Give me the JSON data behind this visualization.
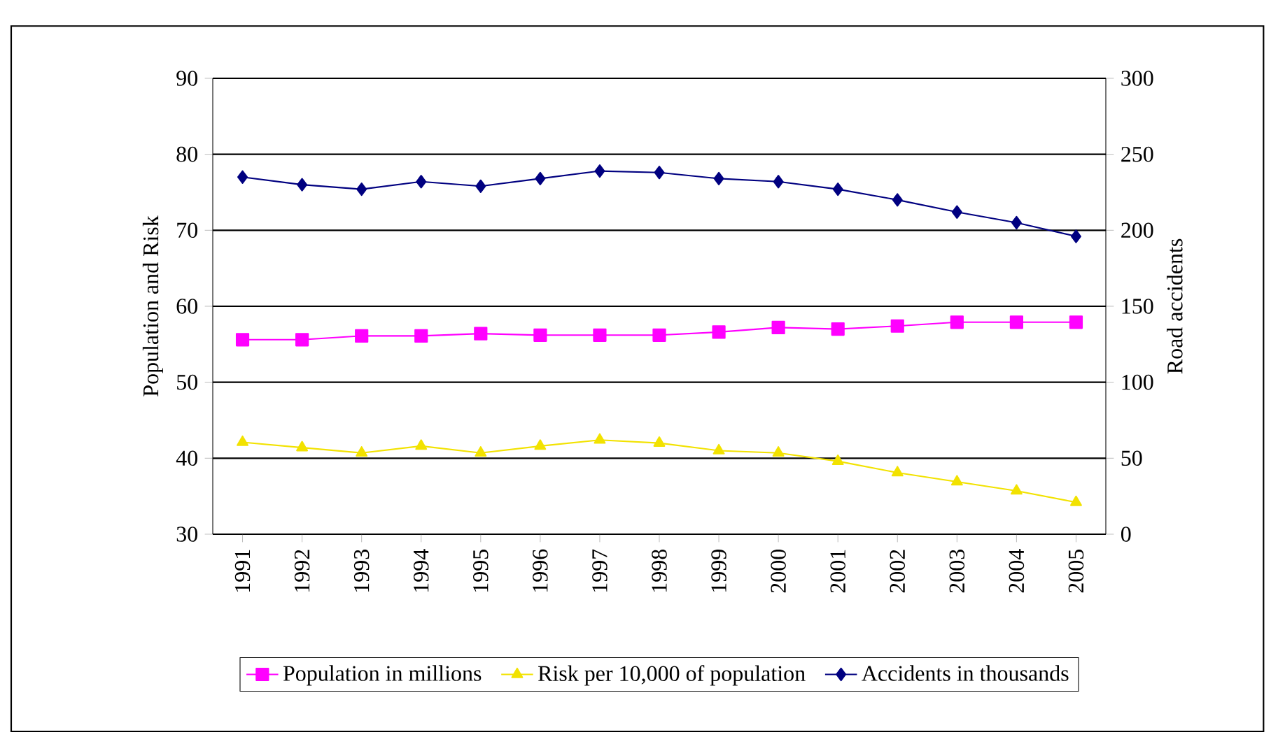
{
  "chart_data": {
    "type": "line",
    "ylabel": "Population and Risk",
    "y2label": "Road accidents",
    "categories": [
      "1991",
      "1992",
      "1993",
      "1994",
      "1995",
      "1996",
      "1997",
      "1998",
      "1999",
      "2000",
      "2001",
      "2002",
      "2003",
      "2004",
      "2005"
    ],
    "ylim": [
      30,
      90
    ],
    "yticks": [
      30,
      40,
      50,
      60,
      70,
      80,
      90
    ],
    "y2lim": [
      0,
      300
    ],
    "y2ticks": [
      0,
      50,
      100,
      150,
      200,
      250,
      300
    ],
    "grid": "y",
    "legend": "bottom",
    "line_style": "solid",
    "series": [
      {
        "name": "Population in millions",
        "color": "#ff00ff",
        "marker": "square",
        "values": [
          55.6,
          55.6,
          56.1,
          56.1,
          56.4,
          56.2,
          56.2,
          56.2,
          56.6,
          57.2,
          57.0,
          57.4,
          57.9,
          57.9,
          57.9
        ]
      },
      {
        "name": "Risk per 10,000 of population",
        "color": "#f2e200",
        "marker": "triangle",
        "values": [
          42.1,
          41.4,
          40.7,
          41.6,
          40.7,
          41.6,
          42.4,
          42.0,
          41.0,
          40.7,
          39.6,
          38.1,
          36.9,
          35.7,
          34.2
        ]
      },
      {
        "name": "Accidents in thousands",
        "color": "#000080",
        "marker": "diamond",
        "axis": "y2",
        "values": [
          235,
          230,
          227,
          232,
          229,
          234,
          239,
          238,
          234,
          232,
          227,
          220,
          212,
          205,
          196
        ]
      }
    ]
  }
}
